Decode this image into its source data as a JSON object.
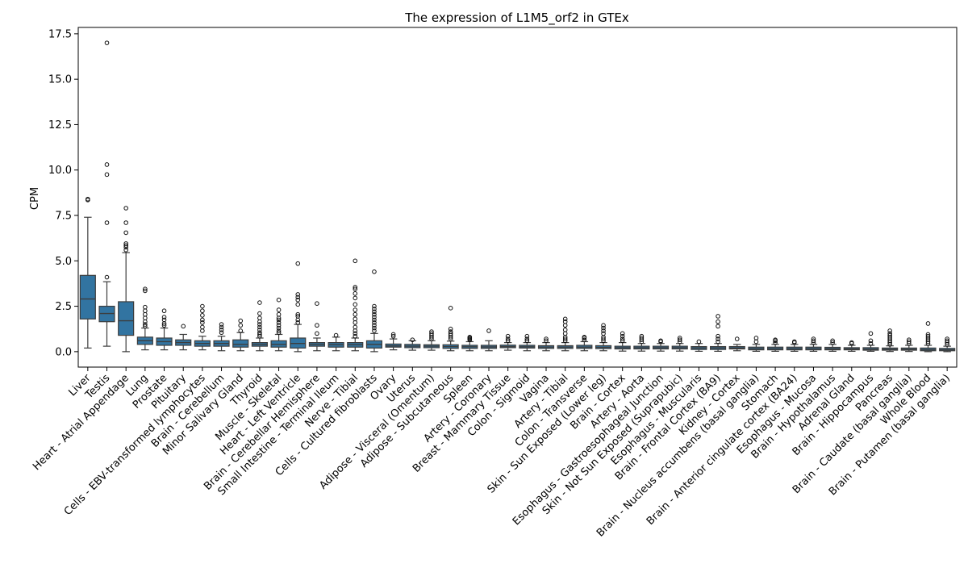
{
  "chart_data": {
    "type": "box",
    "title": "The expression of L1M5_orf2 in GTEx",
    "xlabel": "",
    "ylabel": "CPM",
    "ylim": [
      -0.85,
      17.85
    ],
    "yticks": [
      0.0,
      2.5,
      5.0,
      7.5,
      10.0,
      12.5,
      15.0,
      17.5
    ],
    "ytick_labels": [
      "0.0",
      "2.5",
      "5.0",
      "7.5",
      "10.0",
      "12.5",
      "15.0",
      "17.5"
    ],
    "grid": false,
    "box_color": "#3274a1",
    "edge_color": "#3d3d3d",
    "categories": [
      {
        "label": "Liver",
        "q1": 1.8,
        "median": 2.9,
        "q3": 4.2,
        "whislo": 0.2,
        "whishi": 7.4,
        "fliers": [
          8.35,
          8.4
        ]
      },
      {
        "label": "Testis",
        "q1": 1.65,
        "median": 2.1,
        "q3": 2.5,
        "whislo": 0.3,
        "whishi": 3.85,
        "fliers": [
          4.1,
          7.1,
          9.75,
          10.3,
          17.0
        ]
      },
      {
        "label": "Heart - Atrial Appendage",
        "q1": 0.9,
        "median": 1.7,
        "q3": 2.75,
        "whislo": 0.0,
        "whishi": 5.45,
        "fliers": [
          5.6,
          5.75,
          5.85,
          5.95,
          6.55,
          7.1,
          7.9
        ]
      },
      {
        "label": "Lung",
        "q1": 0.4,
        "median": 0.6,
        "q3": 0.8,
        "whislo": 0.1,
        "whishi": 1.3,
        "fliers": [
          1.4,
          1.5,
          1.65,
          1.85,
          2.05,
          2.25,
          2.45,
          3.35,
          3.45
        ]
      },
      {
        "label": "Prostate",
        "q1": 0.35,
        "median": 0.55,
        "q3": 0.75,
        "whislo": 0.1,
        "whishi": 1.3,
        "fliers": [
          1.45,
          1.55,
          1.75,
          1.9,
          2.25
        ]
      },
      {
        "label": "Pituitary",
        "q1": 0.35,
        "median": 0.5,
        "q3": 0.65,
        "whislo": 0.1,
        "whishi": 0.95,
        "fliers": [
          1.4
        ]
      },
      {
        "label": "Cells - EBV-transformed lymphocytes",
        "q1": 0.3,
        "median": 0.45,
        "q3": 0.6,
        "whislo": 0.1,
        "whishi": 0.85,
        "fliers": [
          1.15,
          1.35,
          1.6,
          1.75,
          2.0,
          2.25,
          2.5
        ]
      },
      {
        "label": "Brain - Cerebellum",
        "q1": 0.3,
        "median": 0.45,
        "q3": 0.6,
        "whislo": 0.05,
        "whishi": 0.85,
        "fliers": [
          1.05,
          1.2,
          1.35,
          1.5
        ]
      },
      {
        "label": "Minor Salivary Gland",
        "q1": 0.25,
        "median": 0.4,
        "q3": 0.65,
        "whislo": 0.05,
        "whishi": 1.05,
        "fliers": [
          1.15,
          1.45,
          1.7
        ]
      },
      {
        "label": "Thyroid",
        "q1": 0.3,
        "median": 0.4,
        "q3": 0.5,
        "whislo": 0.05,
        "whishi": 0.75,
        "fliers": [
          0.85,
          0.95,
          1.05,
          1.2,
          1.35,
          1.5,
          1.65,
          1.85,
          2.1,
          2.7
        ]
      },
      {
        "label": "Muscle - Skeletal",
        "q1": 0.25,
        "median": 0.4,
        "q3": 0.6,
        "whislo": 0.05,
        "whishi": 0.95,
        "fliers": [
          1.05,
          1.15,
          1.3,
          1.45,
          1.6,
          1.75,
          1.85,
          2.05,
          2.3,
          2.85
        ]
      },
      {
        "label": "Heart - Left Ventricle",
        "q1": 0.2,
        "median": 0.45,
        "q3": 0.75,
        "whislo": 0.0,
        "whishi": 1.5,
        "fliers": [
          1.6,
          1.75,
          1.95,
          2.05,
          2.6,
          2.85,
          3.0,
          3.15,
          4.85
        ]
      },
      {
        "label": "Brain - Cerebellar Hemisphere",
        "q1": 0.3,
        "median": 0.4,
        "q3": 0.5,
        "whislo": 0.05,
        "whishi": 0.75,
        "fliers": [
          1.0,
          1.45,
          2.65
        ]
      },
      {
        "label": "Small Intestine - Terminal Ileum",
        "q1": 0.25,
        "median": 0.38,
        "q3": 0.5,
        "whislo": 0.05,
        "whishi": 0.8,
        "fliers": [
          0.9
        ]
      },
      {
        "label": "Nerve - Tibial",
        "q1": 0.25,
        "median": 0.38,
        "q3": 0.5,
        "whislo": 0.05,
        "whishi": 0.75,
        "fliers": [
          0.85,
          1.0,
          1.15,
          1.35,
          1.6,
          1.8,
          2.05,
          2.3,
          2.6,
          2.95,
          3.2,
          3.45,
          3.55,
          5.0
        ]
      },
      {
        "label": "Cells - Cultured fibroblasts",
        "q1": 0.2,
        "median": 0.4,
        "q3": 0.6,
        "whislo": 0.0,
        "whishi": 1.0,
        "fliers": [
          1.15,
          1.3,
          1.45,
          1.6,
          1.75,
          1.9,
          2.05,
          2.2,
          2.35,
          2.5,
          4.4
        ]
      },
      {
        "label": "Ovary",
        "q1": 0.25,
        "median": 0.32,
        "q3": 0.42,
        "whislo": 0.1,
        "whishi": 0.7,
        "fliers": [
          0.85,
          0.95
        ]
      },
      {
        "label": "Uterus",
        "q1": 0.22,
        "median": 0.3,
        "q3": 0.4,
        "whislo": 0.08,
        "whishi": 0.6,
        "fliers": [
          0.65
        ]
      },
      {
        "label": "Adipose - Visceral (Omentum)",
        "q1": 0.22,
        "median": 0.3,
        "q3": 0.38,
        "whislo": 0.08,
        "whishi": 0.6,
        "fliers": [
          0.7,
          0.8,
          0.9,
          1.0,
          1.1
        ]
      },
      {
        "label": "Adipose - Subcutaneous",
        "q1": 0.18,
        "median": 0.28,
        "q3": 0.38,
        "whislo": 0.05,
        "whishi": 0.58,
        "fliers": [
          0.7,
          0.8,
          0.9,
          1.0,
          1.1,
          1.25,
          2.4
        ]
      },
      {
        "label": "Spleen",
        "q1": 0.18,
        "median": 0.27,
        "q3": 0.35,
        "whislo": 0.05,
        "whishi": 0.55,
        "fliers": [
          0.65,
          0.7,
          0.75,
          0.8
        ]
      },
      {
        "label": "Artery - Coronary",
        "q1": 0.18,
        "median": 0.26,
        "q3": 0.35,
        "whislo": 0.05,
        "whishi": 0.6,
        "fliers": [
          1.15
        ]
      },
      {
        "label": "Breast - Mammary Tissue",
        "q1": 0.22,
        "median": 0.28,
        "q3": 0.36,
        "whislo": 0.08,
        "whishi": 0.5,
        "fliers": [
          0.6,
          0.7,
          0.85
        ]
      },
      {
        "label": "Colon - Sigmoid",
        "q1": 0.2,
        "median": 0.27,
        "q3": 0.35,
        "whislo": 0.05,
        "whishi": 0.5,
        "fliers": [
          0.6,
          0.7,
          0.85
        ]
      },
      {
        "label": "Vagina",
        "q1": 0.18,
        "median": 0.25,
        "q3": 0.33,
        "whislo": 0.05,
        "whishi": 0.5,
        "fliers": [
          0.6,
          0.7
        ]
      },
      {
        "label": "Artery - Tibial",
        "q1": 0.18,
        "median": 0.25,
        "q3": 0.33,
        "whislo": 0.05,
        "whishi": 0.5,
        "fliers": [
          0.6,
          0.7,
          0.8,
          1.0,
          1.2,
          1.45,
          1.65,
          1.8
        ]
      },
      {
        "label": "Colon - Transverse",
        "q1": 0.18,
        "median": 0.25,
        "q3": 0.35,
        "whislo": 0.05,
        "whishi": 0.55,
        "fliers": [
          0.65,
          0.75,
          0.8
        ]
      },
      {
        "label": "Skin - Sun Exposed (Lower leg)",
        "q1": 0.17,
        "median": 0.24,
        "q3": 0.33,
        "whislo": 0.05,
        "whishi": 0.5,
        "fliers": [
          0.6,
          0.7,
          0.8,
          1.0,
          1.15,
          1.3,
          1.45
        ]
      },
      {
        "label": "Brain - Cortex",
        "q1": 0.15,
        "median": 0.22,
        "q3": 0.3,
        "whislo": 0.03,
        "whishi": 0.5,
        "fliers": [
          0.6,
          0.7,
          0.85,
          1.0
        ]
      },
      {
        "label": "Artery - Aorta",
        "q1": 0.15,
        "median": 0.22,
        "q3": 0.3,
        "whislo": 0.03,
        "whishi": 0.45,
        "fliers": [
          0.55,
          0.65,
          0.75,
          0.85
        ]
      },
      {
        "label": "Esophagus - Gastroesophageal Junction",
        "q1": 0.15,
        "median": 0.22,
        "q3": 0.3,
        "whislo": 0.03,
        "whishi": 0.45,
        "fliers": [
          0.55,
          0.6
        ]
      },
      {
        "label": "Skin - Not Sun Exposed (Suprapubic)",
        "q1": 0.15,
        "median": 0.22,
        "q3": 0.3,
        "whislo": 0.03,
        "whishi": 0.45,
        "fliers": [
          0.55,
          0.65,
          0.75
        ]
      },
      {
        "label": "Esophagus - Muscularis",
        "q1": 0.12,
        "median": 0.2,
        "q3": 0.28,
        "whislo": 0.02,
        "whishi": 0.45,
        "fliers": [
          0.55
        ]
      },
      {
        "label": "Brain - Frontal Cortex (BA9)",
        "q1": 0.12,
        "median": 0.2,
        "q3": 0.28,
        "whislo": 0.02,
        "whishi": 0.45,
        "fliers": [
          0.55,
          0.7,
          0.85,
          1.4,
          1.65,
          1.95
        ]
      },
      {
        "label": "Kidney - Cortex",
        "q1": 0.15,
        "median": 0.2,
        "q3": 0.28,
        "whislo": 0.05,
        "whishi": 0.4,
        "fliers": [
          0.7
        ]
      },
      {
        "label": "Brain - Nucleus accumbens (basal ganglia)",
        "q1": 0.1,
        "median": 0.17,
        "q3": 0.25,
        "whislo": 0.02,
        "whishi": 0.4,
        "fliers": [
          0.55,
          0.75
        ]
      },
      {
        "label": "Stomach",
        "q1": 0.1,
        "median": 0.17,
        "q3": 0.25,
        "whislo": 0.02,
        "whishi": 0.4,
        "fliers": [
          0.5,
          0.6,
          0.65
        ]
      },
      {
        "label": "Brain - Anterior cingulate cortex (BA24)",
        "q1": 0.1,
        "median": 0.17,
        "q3": 0.25,
        "whislo": 0.02,
        "whishi": 0.4,
        "fliers": [
          0.5,
          0.55
        ]
      },
      {
        "label": "Esophagus - Mucosa",
        "q1": 0.1,
        "median": 0.17,
        "q3": 0.25,
        "whislo": 0.02,
        "whishi": 0.4,
        "fliers": [
          0.5,
          0.6,
          0.7
        ]
      },
      {
        "label": "Brain - Hypothalamus",
        "q1": 0.1,
        "median": 0.16,
        "q3": 0.24,
        "whislo": 0.02,
        "whishi": 0.4,
        "fliers": [
          0.5,
          0.6
        ]
      },
      {
        "label": "Adrenal Gland",
        "q1": 0.1,
        "median": 0.15,
        "q3": 0.22,
        "whislo": 0.02,
        "whishi": 0.35,
        "fliers": [
          0.45,
          0.5
        ]
      },
      {
        "label": "Brain - Hippocampus",
        "q1": 0.08,
        "median": 0.14,
        "q3": 0.22,
        "whislo": 0.02,
        "whishi": 0.35,
        "fliers": [
          0.45,
          0.6,
          1.0
        ]
      },
      {
        "label": "Pancreas",
        "q1": 0.08,
        "median": 0.13,
        "q3": 0.2,
        "whislo": 0.01,
        "whishi": 0.32,
        "fliers": [
          0.4,
          0.5,
          0.6,
          0.7,
          0.8,
          0.9,
          1.0,
          1.15
        ]
      },
      {
        "label": "Brain - Caudate (basal ganglia)",
        "q1": 0.08,
        "median": 0.13,
        "q3": 0.2,
        "whislo": 0.01,
        "whishi": 0.35,
        "fliers": [
          0.45,
          0.55,
          0.65
        ]
      },
      {
        "label": "Whole Blood",
        "q1": 0.05,
        "median": 0.11,
        "q3": 0.2,
        "whislo": 0.0,
        "whishi": 0.35,
        "fliers": [
          0.45,
          0.55,
          0.65,
          0.75,
          0.85,
          0.95,
          1.55
        ]
      },
      {
        "label": "Brain - Putamen (basal ganglia)",
        "q1": 0.05,
        "median": 0.1,
        "q3": 0.18,
        "whislo": 0.0,
        "whishi": 0.3,
        "fliers": [
          0.4,
          0.5,
          0.6,
          0.7
        ]
      }
    ]
  }
}
